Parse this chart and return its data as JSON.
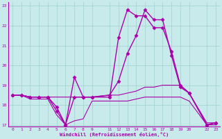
{
  "xlabel": "Windchill (Refroidissement éolien,°C)",
  "bg_color": "#c8eaea",
  "grid_color": "#a0d0d0",
  "line_color": "#aa00aa",
  "xlim": [
    -0.5,
    23.5
  ],
  "ylim": [
    16.9,
    23.2
  ],
  "yticks": [
    17,
    18,
    19,
    20,
    21,
    22,
    23
  ],
  "xticks": [
    0,
    1,
    2,
    3,
    4,
    5,
    6,
    7,
    8,
    9,
    11,
    12,
    13,
    14,
    15,
    16,
    17,
    18,
    19,
    20,
    22,
    23
  ],
  "series": [
    {
      "x": [
        0,
        1,
        2,
        3,
        4,
        5,
        6,
        7,
        8,
        9,
        11,
        12,
        13,
        14,
        15,
        16,
        17,
        18,
        19,
        20,
        22,
        23
      ],
      "y": [
        18.5,
        18.5,
        18.4,
        18.4,
        18.4,
        17.9,
        17.0,
        19.4,
        18.4,
        18.4,
        18.4,
        21.4,
        22.8,
        22.5,
        22.5,
        21.9,
        21.9,
        20.7,
        19.0,
        18.6,
        17.0,
        17.1
      ],
      "marker": "D",
      "markersize": 2.5,
      "linewidth": 1.0
    },
    {
      "x": [
        0,
        1,
        2,
        3,
        4,
        5,
        6,
        7,
        8,
        9,
        11,
        12,
        13,
        14,
        15,
        16,
        17,
        18,
        19,
        20,
        22,
        23
      ],
      "y": [
        18.5,
        18.5,
        18.4,
        18.4,
        18.4,
        18.4,
        18.4,
        18.4,
        18.4,
        18.4,
        18.5,
        18.5,
        18.6,
        18.7,
        18.9,
        18.9,
        19.0,
        19.0,
        19.0,
        18.6,
        17.1,
        17.1
      ],
      "marker": null,
      "markersize": 0,
      "linewidth": 0.8
    },
    {
      "x": [
        0,
        1,
        2,
        3,
        4,
        5,
        6,
        7,
        8,
        9,
        11,
        12,
        13,
        14,
        15,
        16,
        17,
        18,
        19,
        20,
        22,
        23
      ],
      "y": [
        18.5,
        18.5,
        18.3,
        18.3,
        18.3,
        17.5,
        17.0,
        17.2,
        17.3,
        18.2,
        18.2,
        18.2,
        18.2,
        18.3,
        18.4,
        18.4,
        18.4,
        18.4,
        18.4,
        18.2,
        17.0,
        17.0
      ],
      "marker": null,
      "markersize": 0,
      "linewidth": 0.8
    },
    {
      "x": [
        0,
        1,
        2,
        3,
        4,
        5,
        6,
        7,
        8,
        9,
        11,
        12,
        13,
        14,
        15,
        16,
        17,
        18,
        19,
        20,
        22,
        23
      ],
      "y": [
        18.5,
        18.5,
        18.4,
        18.4,
        18.4,
        17.7,
        17.0,
        18.4,
        18.4,
        18.4,
        18.5,
        19.2,
        20.6,
        21.5,
        22.8,
        22.3,
        22.3,
        20.5,
        18.9,
        18.6,
        17.0,
        17.1
      ],
      "marker": "D",
      "markersize": 2.5,
      "linewidth": 1.0
    }
  ]
}
